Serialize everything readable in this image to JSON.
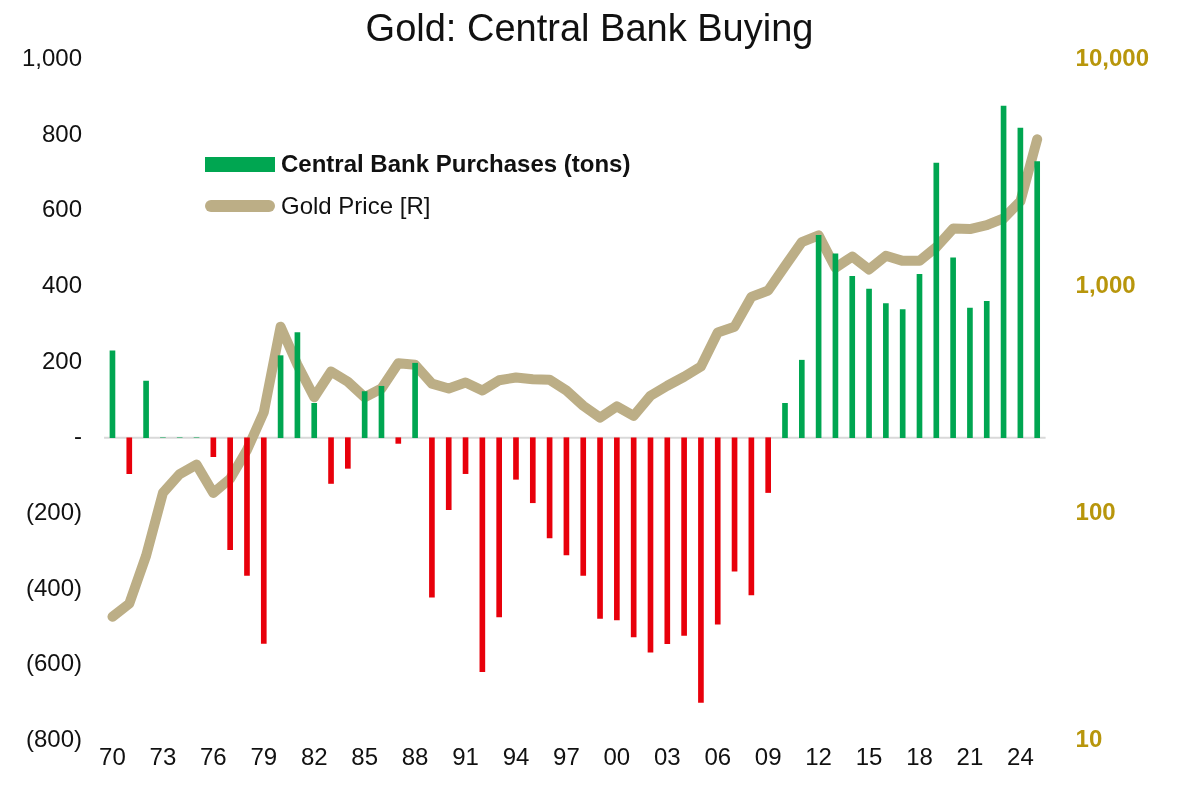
{
  "chart_data": {
    "type": "bar",
    "title": "Gold: Central Bank Buying",
    "categories": [
      "70",
      null,
      null,
      "73",
      null,
      null,
      "76",
      null,
      null,
      "79",
      null,
      null,
      "82",
      null,
      null,
      "85",
      null,
      null,
      "88",
      null,
      null,
      "91",
      null,
      null,
      "94",
      null,
      null,
      "97",
      null,
      null,
      "00",
      null,
      null,
      "03",
      null,
      null,
      "06",
      null,
      null,
      "09",
      null,
      null,
      "12",
      null,
      null,
      "15",
      null,
      null,
      "18",
      null,
      null,
      "21",
      null,
      null,
      "24",
      null
    ],
    "series": [
      {
        "name": "Central Bank Purchases (tons)",
        "color": "#00a651",
        "values": [
          230,
          -95,
          150,
          0,
          0,
          0,
          -50,
          -296,
          -364,
          -544,
          217,
          278,
          91,
          -121,
          -81,
          122,
          136,
          -15,
          197,
          -422,
          -190,
          -95,
          -619,
          -474,
          -110,
          -172,
          -265,
          -310,
          -364,
          -478,
          -482,
          -527,
          -567,
          -545,
          -523,
          -700,
          -493,
          -353,
          -416,
          -145,
          91,
          205,
          535,
          486,
          427,
          393,
          355,
          339,
          432,
          726,
          476,
          343,
          361,
          877,
          819,
          730
        ],
        "colors": [
          "#00a651",
          "#e8000b",
          "#00a651",
          "#00a651",
          "#00a651",
          "#00a651",
          "#e8000b",
          "#e8000b",
          "#e8000b",
          "#e8000b",
          "#00a651",
          "#00a651",
          "#00a651",
          "#e8000b",
          "#e8000b",
          "#00a651",
          "#00a651",
          "#e8000b",
          "#00a651",
          "#e8000b",
          "#e8000b",
          "#e8000b",
          "#e8000b",
          "#e8000b",
          "#e8000b",
          "#e8000b",
          "#e8000b",
          "#e8000b",
          "#e8000b",
          "#e8000b",
          "#e8000b",
          "#e8000b",
          "#e8000b",
          "#e8000b",
          "#e8000b",
          "#e8000b",
          "#e8000b",
          "#e8000b",
          "#e8000b",
          "#e8000b",
          "#00a651",
          "#00a651",
          "#00a651",
          "#00a651",
          "#00a651",
          "#00a651",
          "#00a651",
          "#00a651",
          "#00a651",
          "#00a651",
          "#00a651",
          "#00a651",
          "#00a651",
          "#00a651",
          "#00a651",
          "#00a651"
        ]
      },
      {
        "name": "Gold Price [R]",
        "type": "line",
        "axis": "y2",
        "color": "#bcae86",
        "values": [
          35,
          40,
          65,
          123,
          149,
          164,
          123,
          142,
          190,
          279,
          665,
          452,
          325,
          422,
          380,
          325,
          355,
          459,
          452,
          373,
          355,
          377,
          348,
          386,
          397,
          390,
          388,
          348,
          298,
          264,
          296,
          269,
          330,
          365,
          400,
          444,
          627,
          665,
          900,
          960,
          1230,
          1567,
          1679,
          1209,
          1355,
          1188,
          1365,
          1297,
          1297,
          1489,
          1800,
          1790,
          1862,
          1996,
          2373,
          4453
        ]
      }
    ],
    "ylim": [
      -800,
      1000
    ],
    "yticks": [
      {
        "value": -800,
        "label": "(800)"
      },
      {
        "value": -600,
        "label": "(600)"
      },
      {
        "value": -400,
        "label": "(400)"
      },
      {
        "value": -200,
        "label": "(200)"
      },
      {
        "value": 0,
        "label": "-"
      },
      200,
      400,
      600,
      800,
      {
        "value": 1000,
        "label": "1,000"
      }
    ],
    "log": "y2",
    "y2lim": [
      10,
      10000
    ],
    "y2ticks": [
      10,
      100,
      {
        "value": 1000,
        "label": "1,000"
      },
      {
        "value": 10000,
        "label": "10,000"
      }
    ],
    "ref_lines": [
      {
        "axis": "y",
        "value": 0,
        "color": "#d9d9d9"
      }
    ],
    "grid": false,
    "legend": "top left",
    "marker": "none"
  }
}
